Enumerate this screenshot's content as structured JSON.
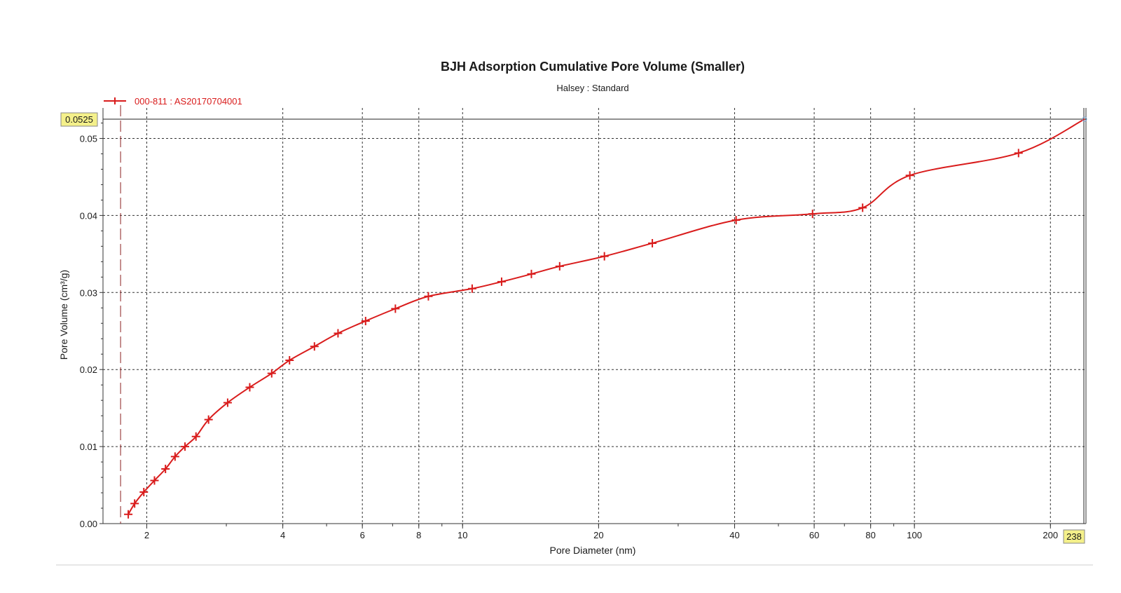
{
  "chart_data": {
    "type": "line",
    "title": "BJH Adsorption Cumulative Pore Volume (Smaller)",
    "subtitle": "Halsey : Standard",
    "xlabel": "Pore Diameter (nm)",
    "ylabel": "Pore Volume (cm³/g)",
    "x_scale": "log",
    "xlim": [
      1.6,
      238
    ],
    "ylim": [
      0,
      0.0525
    ],
    "x_ticks": [
      2,
      4,
      6,
      8,
      10,
      20,
      40,
      60,
      80,
      100,
      200
    ],
    "x_tick_labels": [
      "2",
      "4",
      "6",
      "8",
      "10",
      "20",
      "40",
      "60",
      "80",
      "100",
      "200"
    ],
    "y_ticks": [
      0,
      0.01,
      0.02,
      0.03,
      0.04,
      0.05
    ],
    "y_tick_labels": [
      "0.00",
      "0.01",
      "0.02",
      "0.03",
      "0.04",
      "0.05"
    ],
    "grid": true,
    "legend": "top-left",
    "cursor": {
      "x_label": "238",
      "y_label": "0.0525",
      "reference_x": 1.75
    },
    "series": [
      {
        "name": "000-811 : AS20170704001",
        "color": "#d91c1c",
        "x": [
          1.82,
          1.88,
          1.97,
          2.08,
          2.2,
          2.31,
          2.43,
          2.57,
          2.74,
          3.02,
          3.38,
          3.78,
          4.14,
          4.7,
          5.3,
          6.1,
          7.1,
          8.4,
          10.5,
          12.2,
          14.2,
          16.4,
          20.6,
          26.3,
          40.3,
          59.5,
          76.8,
          97.7,
          170,
          238
        ],
        "values": [
          0.0012,
          0.0026,
          0.0041,
          0.0056,
          0.0071,
          0.0087,
          0.01,
          0.0113,
          0.0135,
          0.0157,
          0.0177,
          0.0195,
          0.0212,
          0.023,
          0.0247,
          0.0263,
          0.0279,
          0.0295,
          0.0305,
          0.0314,
          0.0324,
          0.0334,
          0.0347,
          0.0364,
          0.0394,
          0.0402,
          0.041,
          0.0452,
          0.0481,
          0.0525
        ]
      }
    ]
  }
}
